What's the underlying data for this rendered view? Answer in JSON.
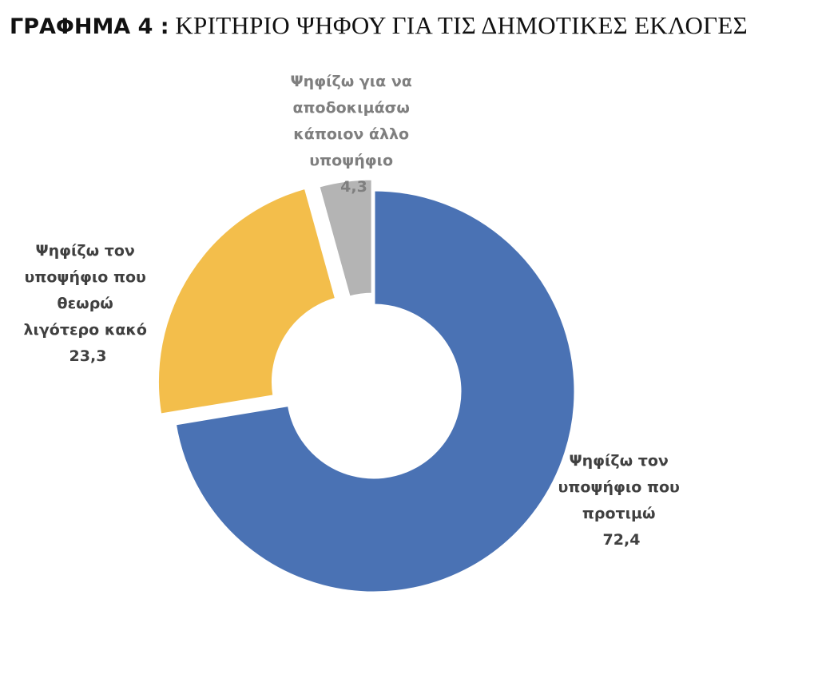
{
  "title": {
    "prefix": "ΓΡΑΦΗΜΑ 4 :",
    "text": "ΚΡΙΤΗΡΙΟ ΨΗΦΟΥ ΓΙΑ ΤΙΣ ΔΗΜΟΤΙΚΕΣ ΕΚΛΟΓΕΣ"
  },
  "chart_data": {
    "type": "pie",
    "style": "donut",
    "legend": "none",
    "categories": [
      "Ψηφίζω τον υποψήφιο που προτιμώ",
      "Ψηφίζω τον υποψήφιο που θεωρώ λιγότερο κακό",
      "Ψηφίζω για να αποδοκιμάσω κάποιον άλλο υποψήφιο"
    ],
    "values": [
      72.4,
      23.3,
      4.3
    ],
    "value_labels": [
      "72,4",
      "23,3",
      "4,3"
    ],
    "colors": [
      "#4a72b4",
      "#f3be4b",
      "#b4b4b4"
    ]
  },
  "labels": {
    "prefer": [
      "Ψηφίζω τον",
      "υποψήφιο που",
      "προτιμώ"
    ],
    "lesser_evil": [
      "Ψηφίζω τον",
      "υποψήφιο που",
      "θεωρώ",
      "λιγότερο κακό"
    ],
    "disapprove": [
      "Ψηφίζω για να",
      "αποδοκιμάσω",
      "κάποιον άλλο",
      "υποψήφιο"
    ]
  }
}
